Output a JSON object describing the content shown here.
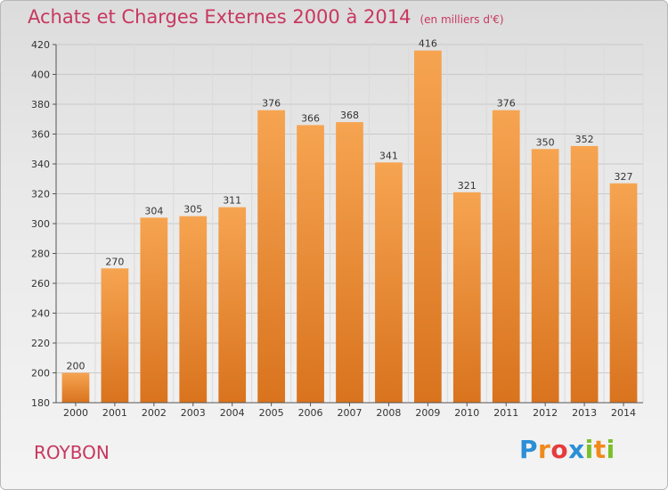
{
  "header": {
    "title": "Achats et Charges Externes 2000 à 2014",
    "subtitle": "(en milliers d'€)"
  },
  "footer": {
    "place": "ROYBON",
    "logo": {
      "text": "Proxiti",
      "letters": [
        {
          "ch": "P",
          "color": "#2a8fd6"
        },
        {
          "ch": "r",
          "color": "#f08a1c"
        },
        {
          "ch": "o",
          "color": "#e63c3c"
        },
        {
          "ch": "x",
          "color": "#2a8fd6"
        },
        {
          "ch": "i",
          "color": "#7bbf2a"
        },
        {
          "ch": "t",
          "color": "#f08a1c"
        },
        {
          "ch": "i",
          "color": "#7bbf2a"
        }
      ]
    }
  },
  "chart_data": {
    "type": "bar",
    "categories": [
      "2000",
      "2001",
      "2002",
      "2003",
      "2004",
      "2005",
      "2006",
      "2007",
      "2008",
      "2009",
      "2010",
      "2011",
      "2012",
      "2013",
      "2014"
    ],
    "values": [
      200,
      270,
      304,
      305,
      311,
      376,
      366,
      368,
      341,
      416,
      321,
      376,
      350,
      352,
      327
    ],
    "title": "Achats et Charges Externes 2000 à 2014",
    "subtitle": "(en milliers d'€)",
    "ylim": [
      180,
      420
    ],
    "yticks": [
      180,
      200,
      220,
      240,
      260,
      280,
      300,
      320,
      340,
      360,
      380,
      400,
      420
    ],
    "grid": true,
    "bar_color": "#f0913a",
    "data_labels": true
  }
}
